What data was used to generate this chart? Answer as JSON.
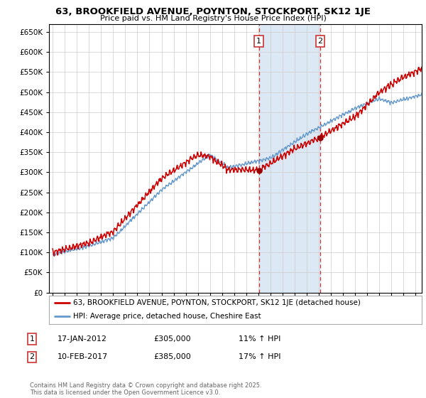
{
  "title1": "63, BROOKFIELD AVENUE, POYNTON, STOCKPORT, SK12 1JE",
  "title2": "Price paid vs. HM Land Registry's House Price Index (HPI)",
  "ylim": [
    0,
    670000
  ],
  "yticks": [
    0,
    50000,
    100000,
    150000,
    200000,
    250000,
    300000,
    350000,
    400000,
    450000,
    500000,
    550000,
    600000,
    650000
  ],
  "xlim_start": 1994.7,
  "xlim_end": 2025.5,
  "marker1_x": 2012.04,
  "marker2_x": 2017.11,
  "marker1_label": "1",
  "marker2_label": "2",
  "shade_start": 2012.04,
  "shade_end": 2017.11,
  "shade_color": "#dce9f5",
  "vline_color": "#cc3333",
  "line_color_price": "#cc0000",
  "line_color_hpi": "#6699cc",
  "legend_label1": "63, BROOKFIELD AVENUE, POYNTON, STOCKPORT, SK12 1JE (detached house)",
  "legend_label2": "HPI: Average price, detached house, Cheshire East",
  "annotation1_date": "17-JAN-2012",
  "annotation1_price": "£305,000",
  "annotation1_hpi": "11% ↑ HPI",
  "annotation2_date": "10-FEB-2017",
  "annotation2_price": "£385,000",
  "annotation2_hpi": "17% ↑ HPI",
  "footer": "Contains HM Land Registry data © Crown copyright and database right 2025.\nThis data is licensed under the Open Government Licence v3.0.",
  "bg_color": "#ffffff",
  "grid_color": "#cccccc",
  "marker_dot_color": "#990000"
}
